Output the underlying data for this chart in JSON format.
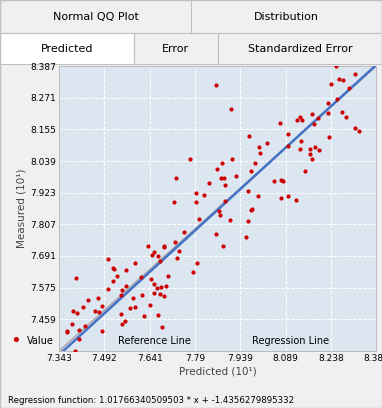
{
  "title_top_left": "Normal QQ Plot",
  "title_top_right": "Distribution",
  "tab_active": "Predicted",
  "tab_labels_row2": [
    "Predicted",
    "Error",
    "Standardized Error"
  ],
  "ylabel": "Measured (10¹)",
  "xlabel": "Predicted (10¹)",
  "yticks": [
    7.459,
    7.575,
    7.691,
    7.807,
    7.923,
    8.039,
    8.155,
    8.271,
    8.387
  ],
  "xticks": [
    7.343,
    7.492,
    7.641,
    7.79,
    7.939,
    8.089,
    8.238,
    8.387
  ],
  "xlim": [
    7.343,
    8.387
  ],
  "ylim": [
    7.343,
    8.387
  ],
  "regression_slope": 1.01766340509503,
  "regression_intercept": -1.4356279895332,
  "regression_label": "Regression function: 1.01766340509503 * x + -1.4356279895332",
  "scatter_color": "#cc0000",
  "ref_line_color": "#aaaaaa",
  "reg_line_color": "#4472c4",
  "background_color": "#f0f0f0",
  "plot_bg_color": "#dce6f1",
  "grid_color": "#ffffff",
  "rand_seed": 42,
  "n_points": 150,
  "noise_std": 0.12
}
